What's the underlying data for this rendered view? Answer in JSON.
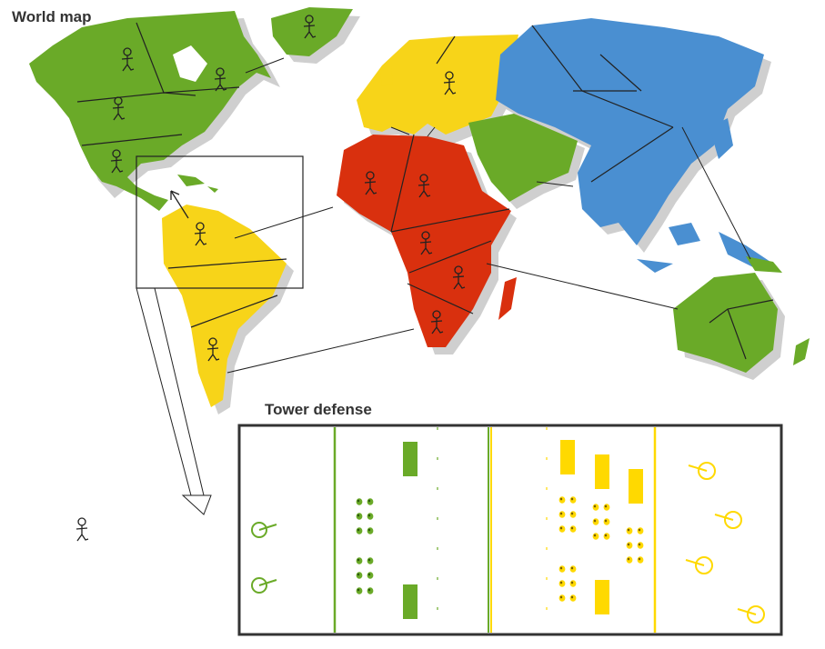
{
  "titles": {
    "world_map": "World map",
    "tower_defense": "Tower defense"
  },
  "colors": {
    "green": "#6aaa28",
    "yellow": "#f7d419",
    "red": "#d9300e",
    "blue": "#4a8fd1",
    "shadow": "#c9c9c9",
    "tower_green": "#6aaa28",
    "tower_yellow": "#ffd900"
  },
  "regions": [
    {
      "id": "north-america",
      "color": "green",
      "units": 4
    },
    {
      "id": "greenland",
      "color": "green",
      "units": 1
    },
    {
      "id": "south-america",
      "color": "yellow",
      "units": 2
    },
    {
      "id": "europe",
      "color": "yellow",
      "units": 1
    },
    {
      "id": "africa",
      "color": "red",
      "units": 5
    },
    {
      "id": "middle-east",
      "color": "green",
      "units": 0
    },
    {
      "id": "asia",
      "color": "blue",
      "units": 0
    },
    {
      "id": "australia",
      "color": "green",
      "units": 0
    }
  ],
  "zoom_link": {
    "from": "south-america",
    "to": "tower-defense"
  },
  "tower_defense": {
    "lanes": [
      "green-base",
      "green-front",
      "yellow-front",
      "yellow-base"
    ],
    "green_troop_blocks": 2,
    "yellow_troop_blocks": 4,
    "green_heroes": 2,
    "yellow_heroes": 4
  }
}
